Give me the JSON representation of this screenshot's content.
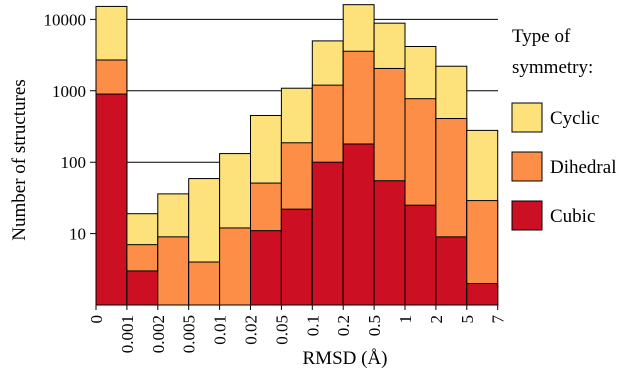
{
  "chart_data": {
    "type": "bar",
    "stacked": true,
    "y_scale": "log",
    "ylim": [
      1,
      10000
    ],
    "y_ticks": [
      10,
      100,
      1000,
      10000
    ],
    "y_tick_labels": [
      "10",
      "100",
      "1000",
      "10000"
    ],
    "x_boundaries": [
      "0",
      "0.001",
      "0.002",
      "0.005",
      "0.01",
      "0.02",
      "0.05",
      "0.1",
      "0.2",
      "0.5",
      "1",
      "2",
      "5",
      "7"
    ],
    "xlabel": "RMSD (Å)",
    "ylabel": "Number of structures",
    "grid": "horizontal",
    "legend": {
      "title": "Type of symmetry:",
      "title_lines": [
        "Type of",
        "symmetry:"
      ],
      "placement": "right"
    },
    "series": [
      {
        "name": "Cubic",
        "color": "#cc0f23",
        "values": [
          900,
          3,
          0,
          0,
          0,
          11,
          22,
          100,
          180,
          55,
          25,
          9,
          2
        ]
      },
      {
        "name": "Dihedral",
        "color": "#fc8e48",
        "values": [
          1800,
          4,
          9,
          4,
          12,
          40,
          165,
          1100,
          3400,
          2000,
          750,
          400,
          27
        ]
      },
      {
        "name": "Cyclic",
        "color": "#fde17a",
        "values": [
          12500,
          12,
          27,
          55,
          120,
          400,
          900,
          3800,
          12500,
          6800,
          3400,
          1800,
          250
        ]
      }
    ]
  }
}
